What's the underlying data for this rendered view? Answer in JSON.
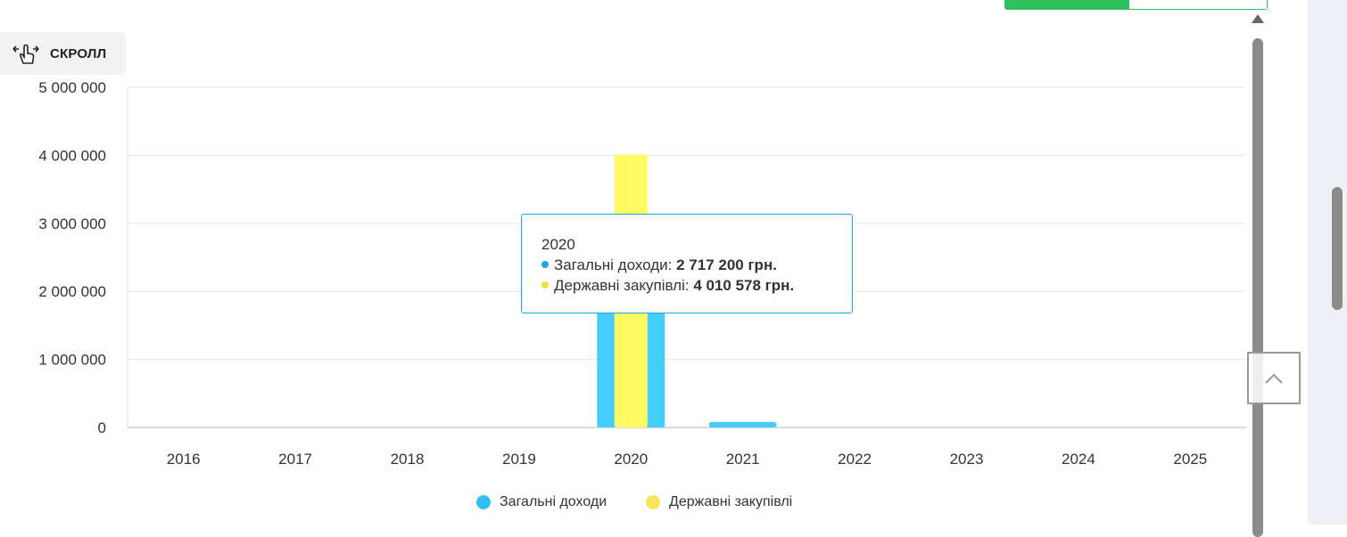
{
  "scroll_control": {
    "label": "СКРОЛЛ",
    "icon": "hand-drag-icon"
  },
  "tooltip": {
    "title": "2020",
    "rows": [
      {
        "name": "Загальні доходи",
        "value": "2 717 200 грн."
      },
      {
        "name": "Державні закупівлі",
        "value": "4 010 578 грн."
      }
    ]
  },
  "colors": {
    "income": "#45cdfb",
    "procurement": "#fff962",
    "income_legend": "#33bdf5",
    "procurement_legend": "#fde35a",
    "accent": "#2ec05c"
  },
  "chart_data": {
    "type": "bar",
    "categories": [
      "2016",
      "2017",
      "2018",
      "2019",
      "2020",
      "2021",
      "2022",
      "2023",
      "2024",
      "2025"
    ],
    "series": [
      {
        "name": "Загальні доходи",
        "values": [
          0,
          0,
          0,
          0,
          2717200,
          80000,
          0,
          0,
          0,
          0
        ]
      },
      {
        "name": "Державні закупівлі",
        "values": [
          0,
          0,
          0,
          0,
          4010578,
          0,
          0,
          0,
          0,
          0
        ]
      }
    ],
    "ylim": [
      0,
      5000000
    ],
    "yticks": [
      0,
      1000000,
      2000000,
      3000000,
      4000000,
      5000000
    ],
    "ytick_labels": [
      "0",
      "1 000 000",
      "2 000 000",
      "3 000 000",
      "4 000 000",
      "5 000 000"
    ],
    "grid": true,
    "legend_position": "bottom"
  }
}
